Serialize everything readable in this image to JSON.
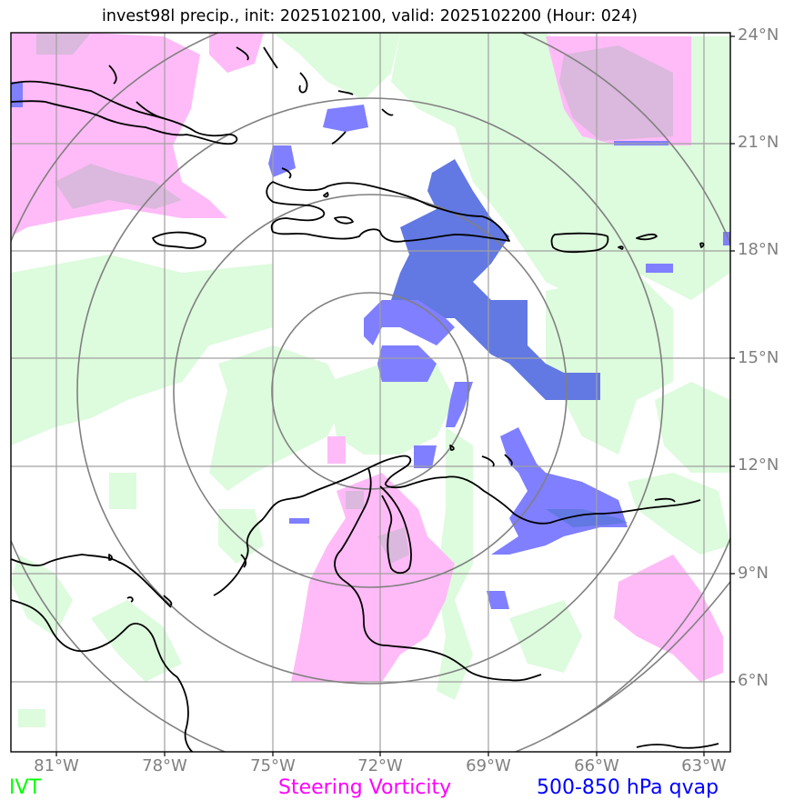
{
  "title": "invest98l precip., init: 2025102100, valid: 2025102200 (Hour: 024)",
  "lat_labels": [
    "24°N",
    "21°N",
    "18°N",
    "15°N",
    "12°N",
    "9°N",
    "6°N"
  ],
  "lon_labels": [
    "81°W",
    "78°W",
    "75°W",
    "72°W",
    "69°W",
    "66°W",
    "63°W"
  ],
  "legend": {
    "ivt": {
      "label": "IVT",
      "color": "#00ff00"
    },
    "vorticity": {
      "label": "Steering Vorticity",
      "color": "#ff00ff"
    },
    "qvap": {
      "label": "500-850 hPa qvap",
      "color": "#0000ff"
    }
  },
  "colors": {
    "ivt_fill": "#ddfbdd",
    "vorticity_fill": "#ffbbf7",
    "overlap_fill": "#dbb8dd",
    "qvap_fill": "#7f7fff",
    "qvap_dark": "#6278e2",
    "grid": "#a0a0a0",
    "rings": "#808080",
    "coast": "#000000"
  }
}
